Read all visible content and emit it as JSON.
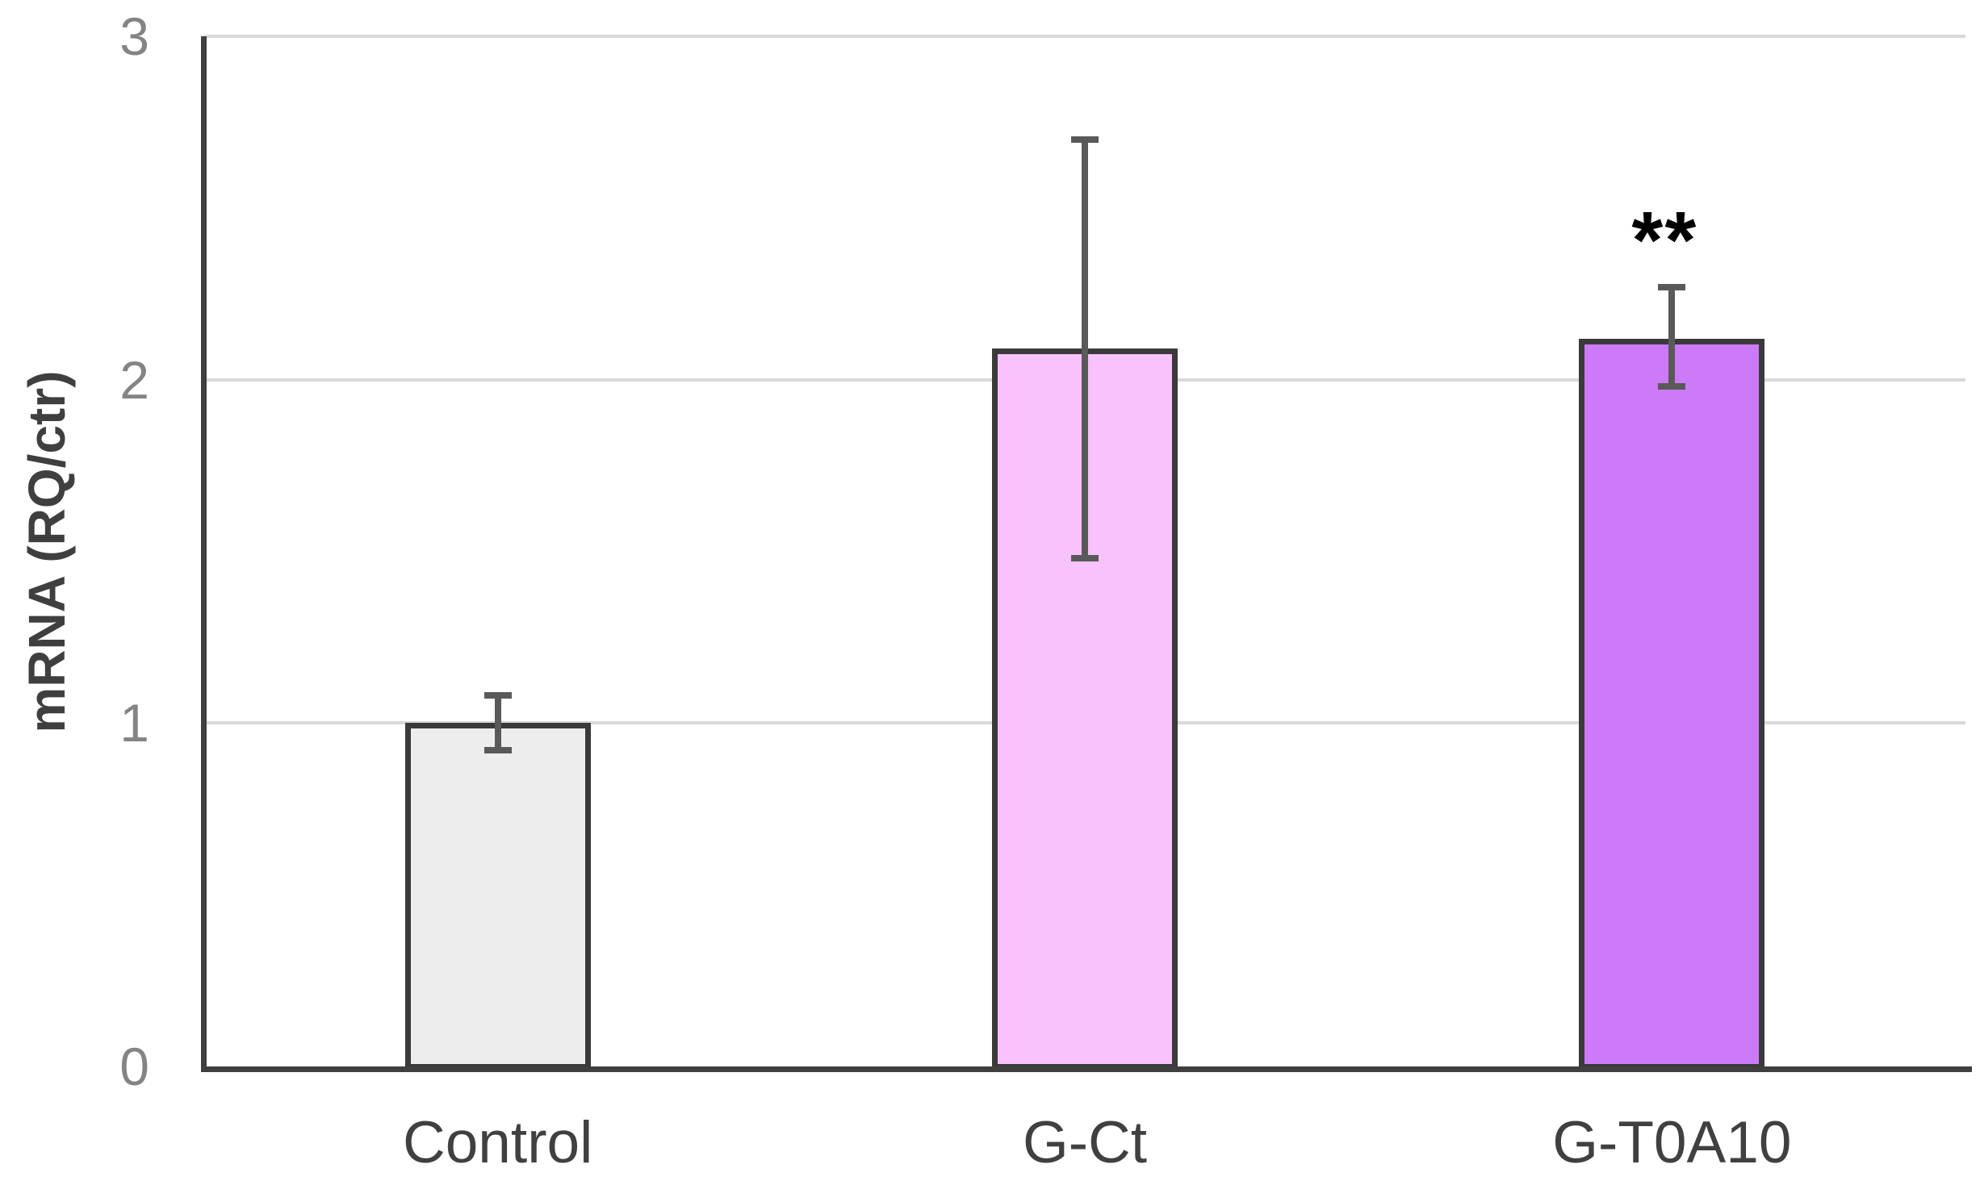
{
  "chart_data": {
    "type": "bar",
    "title": "",
    "xlabel": "",
    "ylabel": "mRNA (RQ/ctr)",
    "ylim": [
      0,
      3
    ],
    "yticks": [
      "0",
      "1",
      "2",
      "3"
    ],
    "grid": true,
    "legend": "none",
    "categories": [
      "Control",
      "G-Ct",
      "G-T0A10"
    ],
    "values": [
      1.0,
      2.09,
      2.12
    ],
    "error_plus": [
      0.08,
      0.61,
      0.15
    ],
    "error_minus": [
      0.08,
      0.61,
      0.14
    ],
    "annotations": [
      {
        "category_index": 2,
        "text": "**",
        "meaning": "significance-marker"
      }
    ],
    "colors": {
      "bar_fills": [
        "#ededed",
        "#f8c2fc",
        "#cc7af7"
      ],
      "bar_border": "#3a3a3a",
      "error_bar": "#595959",
      "gridline": "#d9d9d9",
      "axis_line": "#3f3f3f",
      "tick_label": "#848484",
      "category_label": "#404040",
      "axis_title": "#3f3f3f",
      "annotation": "#000000",
      "background": "#ffffff"
    }
  }
}
